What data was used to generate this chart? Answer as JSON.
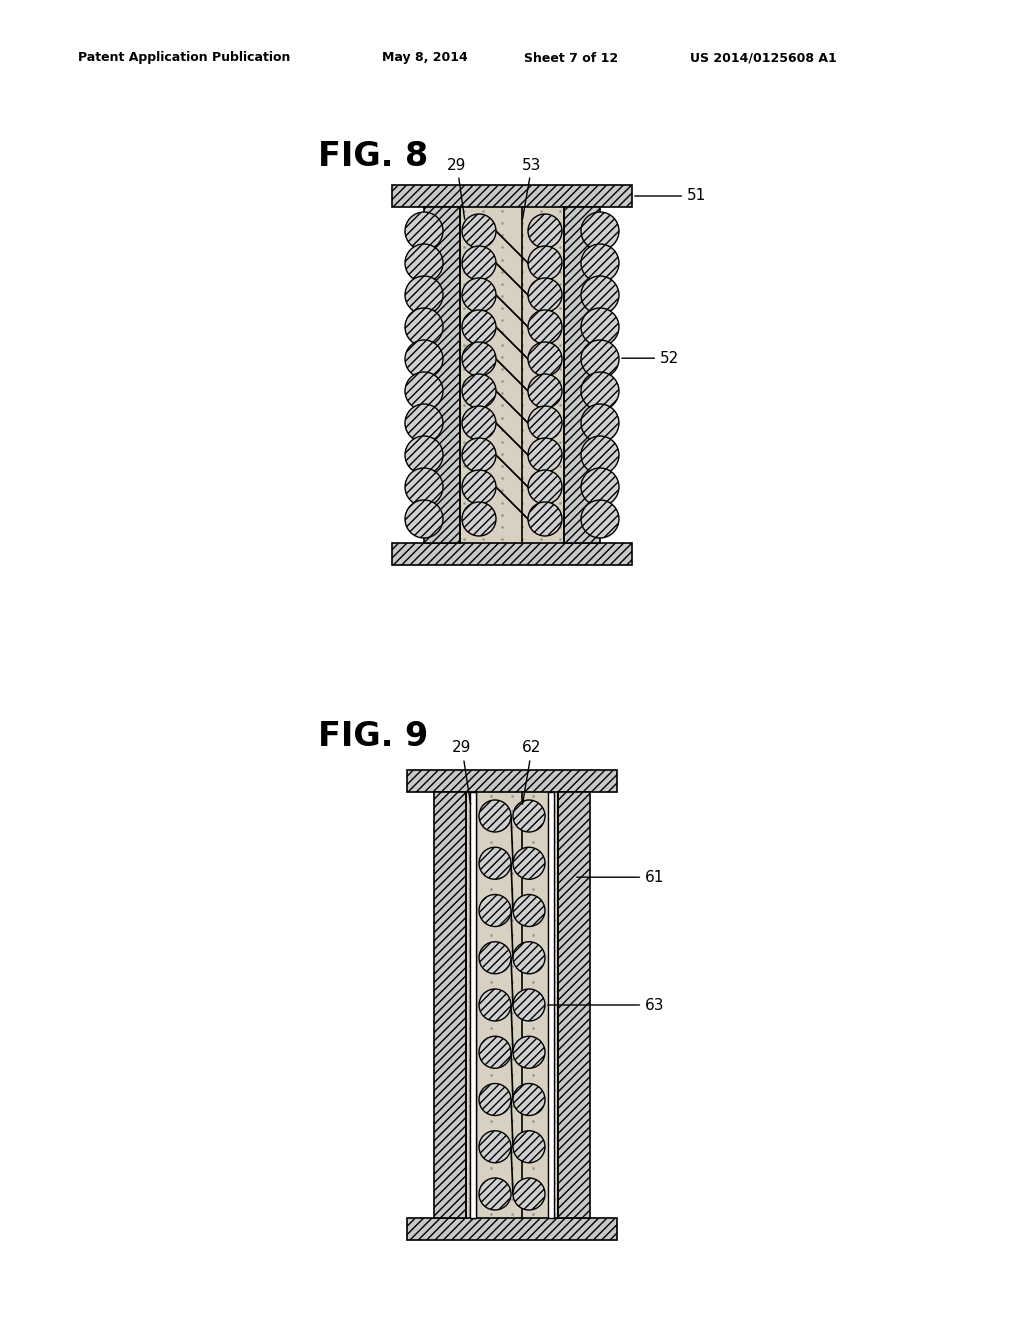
{
  "bg_color": "#ffffff",
  "header_text": "Patent Application Publication",
  "header_date": "May 8, 2014",
  "header_sheet": "Sheet 7 of 12",
  "header_patent": "US 2014/0125608 A1",
  "fig8_label": "FIG. 8",
  "fig9_label": "FIG. 9",
  "hatch_color": "#c8c8c8",
  "stipple_color": "#d8d0c0",
  "stipple_dot_color": "#888888"
}
